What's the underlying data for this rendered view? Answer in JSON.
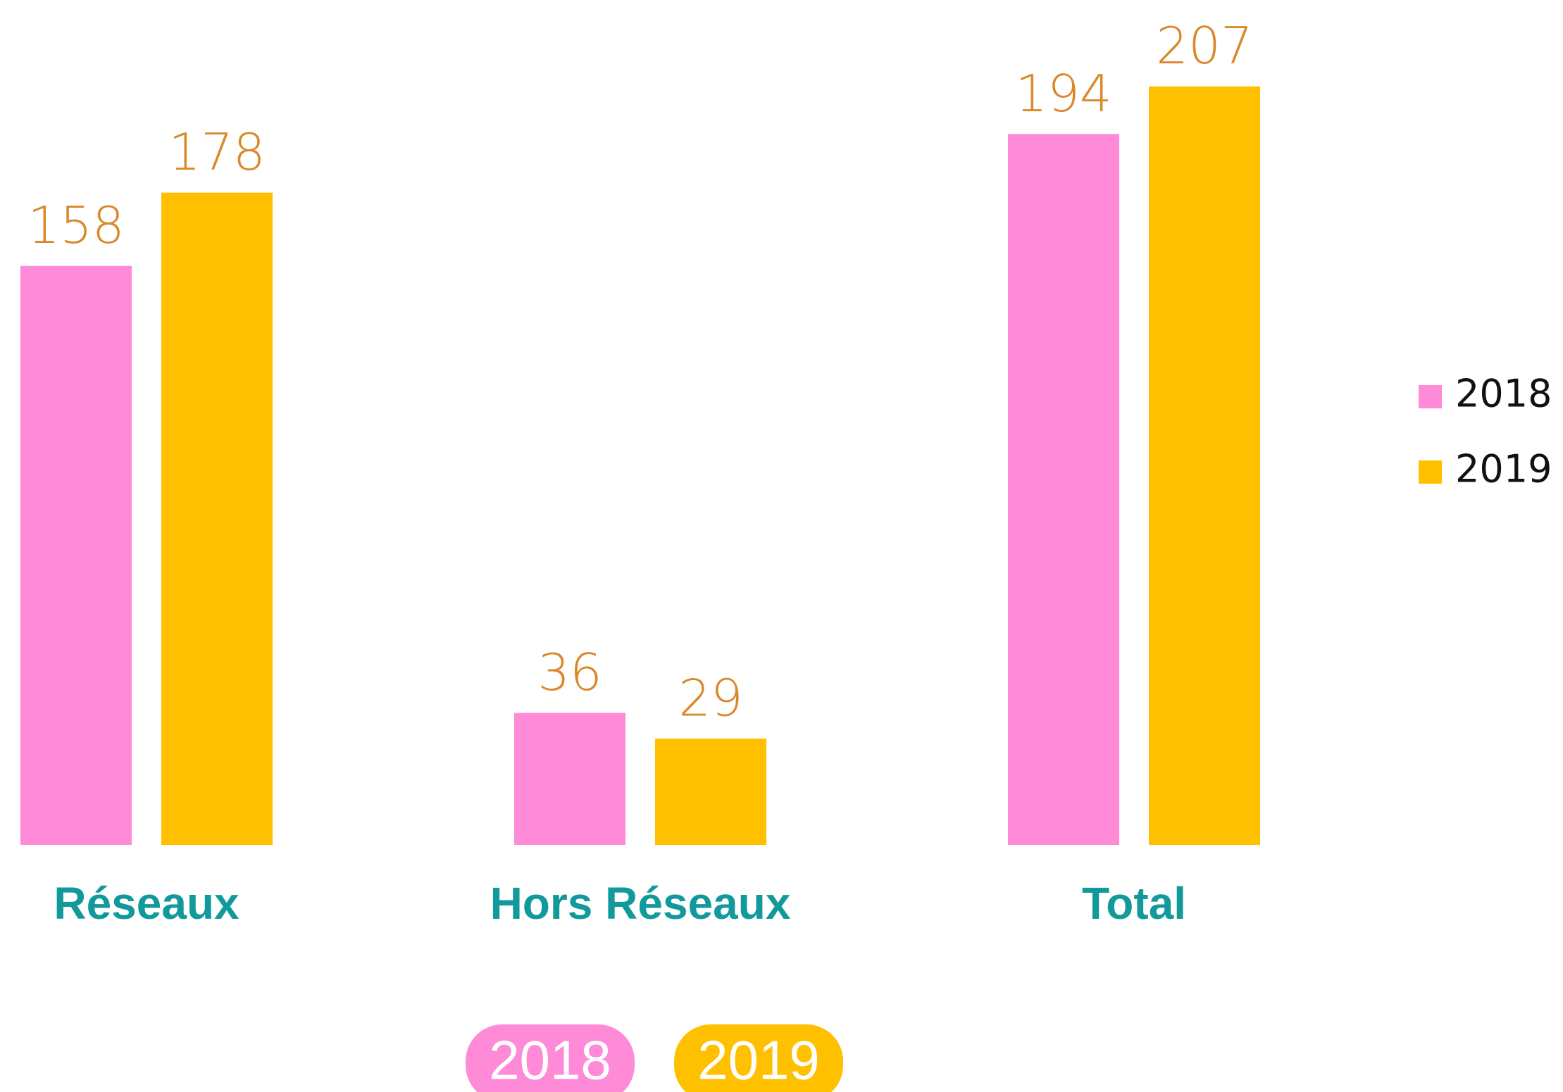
{
  "chart_data": {
    "type": "bar",
    "categories": [
      "Réseaux",
      "Hors Réseaux",
      "Total"
    ],
    "series": [
      {
        "name": "2018",
        "color": "#FF8AD8",
        "values": [
          158,
          36,
          194
        ]
      },
      {
        "name": "2019",
        "color": "#FFC000",
        "values": [
          178,
          29,
          207
        ]
      }
    ],
    "ylim": [
      0,
      230
    ],
    "legend": "right"
  }
}
